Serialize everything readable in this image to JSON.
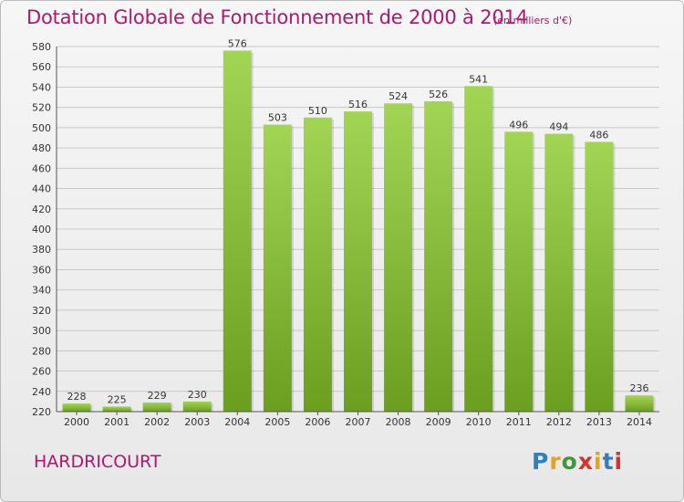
{
  "header": {
    "title": "Dotation Globale de Fonctionnement de 2000 à 2014",
    "subtitle": "(en milliers d'€)"
  },
  "footer": {
    "commune": "HARDRICOURT",
    "logo": "Proxiti"
  },
  "colors": {
    "title": "#b0176d",
    "bar_light": "#a3d555",
    "bar_dark": "#6b9e1f",
    "grid": "#c8c8c8"
  },
  "chart_data": {
    "type": "bar",
    "title": "Dotation Globale de Fonctionnement de 2000 à 2014",
    "subtitle": "(en milliers d'€)",
    "xlabel": "",
    "ylabel": "",
    "categories": [
      "2000",
      "2001",
      "2002",
      "2003",
      "2004",
      "2005",
      "2006",
      "2007",
      "2008",
      "2009",
      "2010",
      "2011",
      "2012",
      "2013",
      "2014"
    ],
    "values": [
      228,
      225,
      229,
      230,
      576,
      503,
      510,
      516,
      524,
      526,
      541,
      496,
      494,
      486,
      236
    ],
    "ylim": [
      220,
      580
    ],
    "yticks": [
      220,
      240,
      260,
      280,
      300,
      320,
      340,
      360,
      380,
      400,
      420,
      440,
      460,
      480,
      500,
      520,
      540,
      560,
      580
    ],
    "grid": true,
    "data_labels": true
  }
}
